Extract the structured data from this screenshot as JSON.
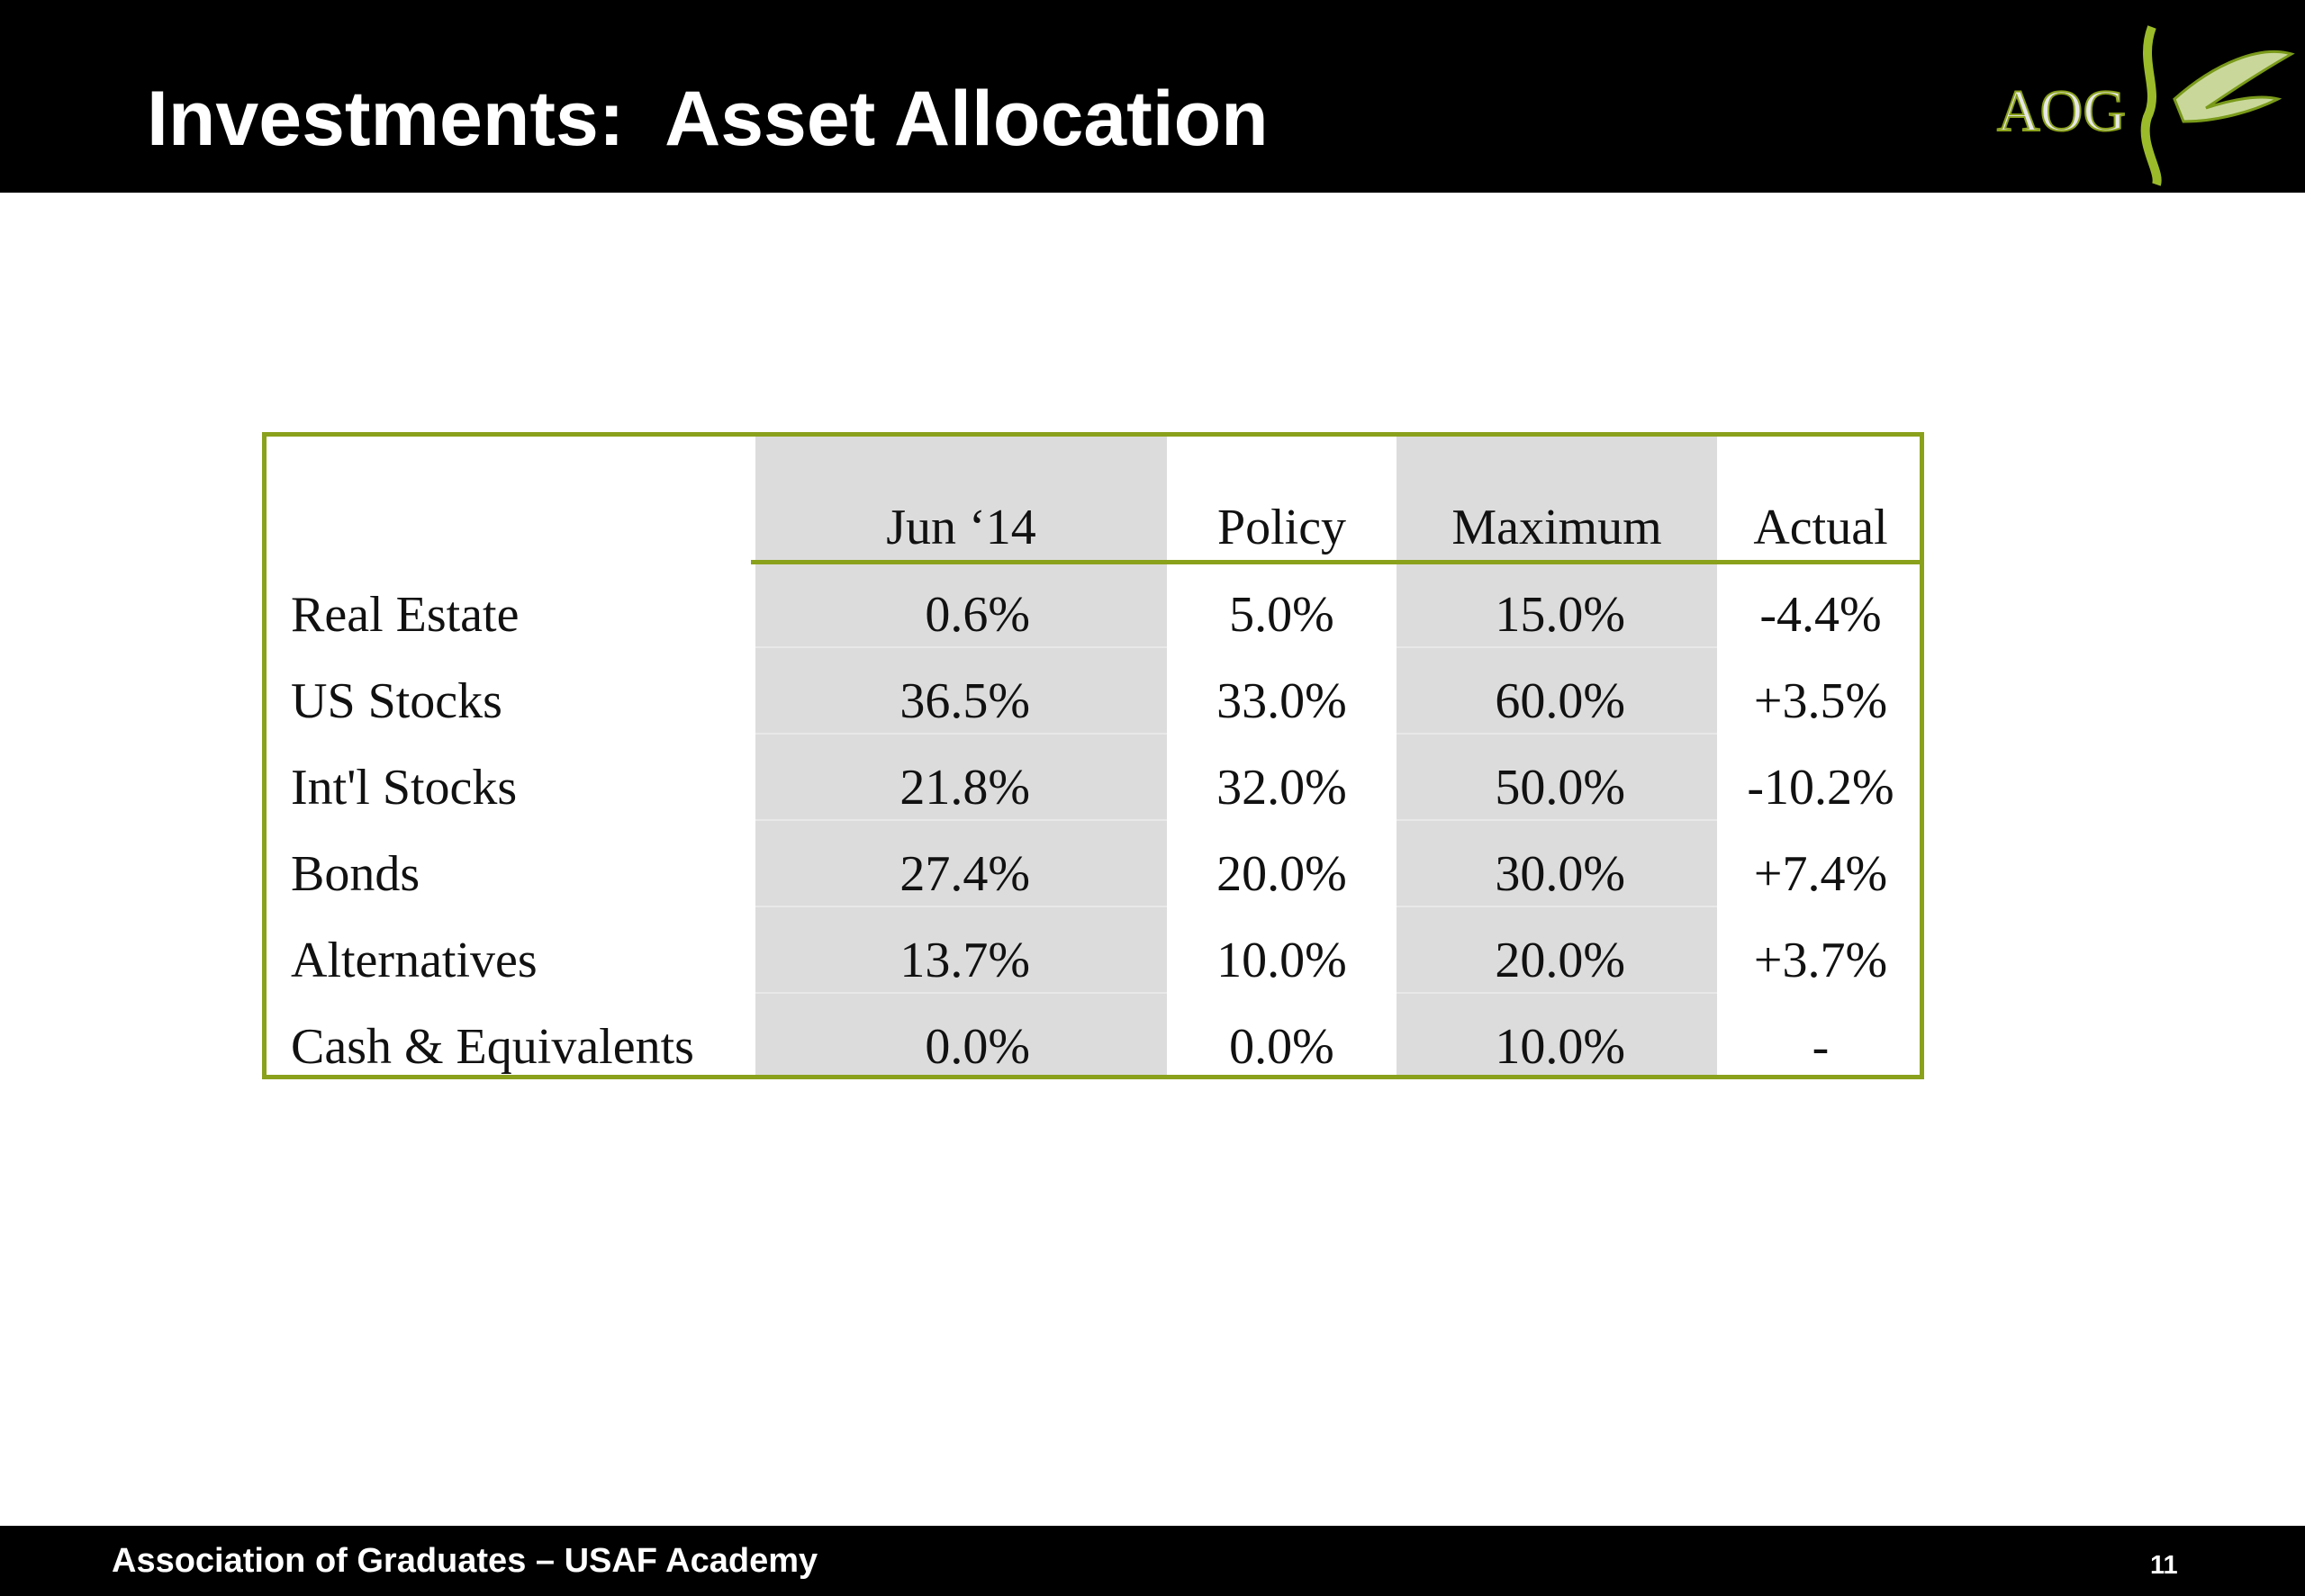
{
  "header": {
    "title": "Investments:  Asset Allocation",
    "logo": "AOG"
  },
  "table": {
    "columns": [
      "",
      "Jun ‘14",
      "Policy",
      "Maximum",
      "Actual"
    ],
    "rows": [
      [
        "Real Estate",
        "0.6%",
        "5.0%",
        "15.0%",
        "-4.4%"
      ],
      [
        "US Stocks",
        "36.5%",
        "33.0%",
        "60.0%",
        "+3.5%"
      ],
      [
        "Int'l Stocks",
        "21.8%",
        "32.0%",
        "50.0%",
        "-10.2%"
      ],
      [
        "Bonds",
        "27.4%",
        "20.0%",
        "30.0%",
        "+7.4%"
      ],
      [
        "Alternatives",
        "13.7%",
        "10.0%",
        "20.0%",
        "+3.7%"
      ],
      [
        "Cash & Equivalents",
        "0.0%",
        "0.0%",
        "10.0%",
        "-"
      ]
    ]
  },
  "footer": {
    "text": "Association of Graduates – USAF Academy",
    "page": "11"
  }
}
